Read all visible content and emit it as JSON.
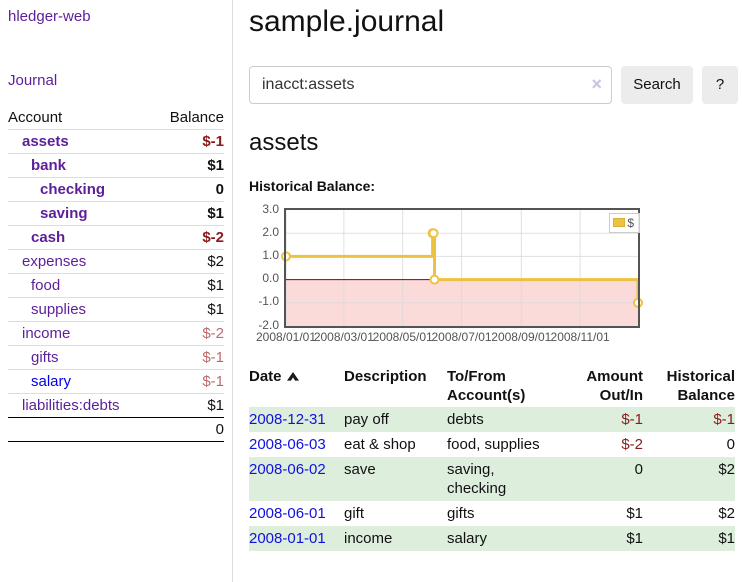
{
  "sidebar": {
    "app_title": "hledger-web",
    "nav": {
      "journal_label": "Journal"
    },
    "accounts_table": {
      "headers": {
        "account": "Account",
        "balance": "Balance"
      },
      "rows": [
        {
          "name": "assets",
          "balance": "$-1",
          "depth": 1,
          "bold": true,
          "name_style": "purple",
          "balance_style": "neg-dark"
        },
        {
          "name": "bank",
          "balance": "$1",
          "depth": 2,
          "bold": true,
          "name_style": "purple",
          "balance_style": "pos"
        },
        {
          "name": "checking",
          "balance": "0",
          "depth": 3,
          "bold": true,
          "name_style": "purple",
          "balance_style": "pos"
        },
        {
          "name": "saving",
          "balance": "$1",
          "depth": 3,
          "bold": true,
          "name_style": "purple",
          "balance_style": "pos"
        },
        {
          "name": "cash",
          "balance": "$-2",
          "depth": 2,
          "bold": true,
          "name_style": "purple",
          "balance_style": "neg-dark"
        },
        {
          "name": "expenses",
          "balance": "$2",
          "depth": 1,
          "bold": false,
          "name_style": "purple",
          "balance_style": "pos"
        },
        {
          "name": "food",
          "balance": "$1",
          "depth": 2,
          "bold": false,
          "name_style": "purple",
          "balance_style": "pos"
        },
        {
          "name": "supplies",
          "balance": "$1",
          "depth": 2,
          "bold": false,
          "name_style": "purple",
          "balance_style": "pos"
        },
        {
          "name": "income",
          "balance": "$-2",
          "depth": 1,
          "bold": false,
          "name_style": "purple",
          "balance_style": "neg-light"
        },
        {
          "name": "gifts",
          "balance": "$-1",
          "depth": 2,
          "bold": false,
          "name_style": "purple",
          "balance_style": "neg-light"
        },
        {
          "name": "salary",
          "balance": "$-1",
          "depth": 2,
          "bold": false,
          "name_style": "blue",
          "balance_style": "neg-light"
        },
        {
          "name": "liabilities:debts",
          "balance": "$1",
          "depth": 1,
          "bold": false,
          "name_style": "purple",
          "balance_style": "pos"
        }
      ],
      "total": "0"
    }
  },
  "main": {
    "title": "sample.journal",
    "search": {
      "value": "inacct:assets",
      "clear_icon": "×",
      "button_label": "Search",
      "help_label": "?"
    },
    "account_heading": "assets",
    "chart_heading": "Historical Balance:"
  },
  "chart_data": {
    "type": "line",
    "title": "Historical Balance:",
    "steps": true,
    "series": [
      {
        "name": "$",
        "color": "#edc240",
        "points": [
          [
            "2008-01-01",
            1
          ],
          [
            "2008-06-01",
            2
          ],
          [
            "2008-06-02",
            2
          ],
          [
            "2008-06-03",
            0
          ],
          [
            "2008-12-31",
            -1
          ]
        ]
      }
    ],
    "xlim": [
      "2008-01-01",
      "2008-12-31"
    ],
    "ylim": [
      -2,
      3
    ],
    "y_ticks": [
      {
        "value": 3,
        "label": "3.0"
      },
      {
        "value": 2,
        "label": "2.0"
      },
      {
        "value": 1,
        "label": "1.0"
      },
      {
        "value": 0,
        "label": "0.0"
      },
      {
        "value": -1,
        "label": "-1.0"
      },
      {
        "value": -2,
        "label": "-2.0"
      }
    ],
    "x_ticks": [
      {
        "date": "2008-01-01",
        "label": "2008/01/01"
      },
      {
        "date": "2008-03-01",
        "label": "2008/03/01"
      },
      {
        "date": "2008-05-01",
        "label": "2008/05/01"
      },
      {
        "date": "2008-07-01",
        "label": "2008/07/01"
      },
      {
        "date": "2008-09-01",
        "label": "2008/09/01"
      },
      {
        "date": "2008-11-01",
        "label": "2008/11/01"
      }
    ],
    "grid": true,
    "legend_position": "top-right",
    "legend_label": "$",
    "negative_region_color": "#fbdada",
    "zero_line_color": "#8b0000",
    "line_color": "#edc240"
  },
  "register": {
    "headers": {
      "date": "Date",
      "description": "Description",
      "accounts": "To/From\nAccount(s)",
      "amount": "Amount\nOut/In",
      "balance": "Historical\nBalance",
      "sort_icon": "sort-ascending"
    },
    "rows": [
      {
        "date": "2008-12-31",
        "description": "pay off",
        "accounts": [
          "debts"
        ],
        "amount": "$-1",
        "amount_style": "neg-dark",
        "balance": "$-1",
        "balance_style": "neg-dark",
        "shaded": true
      },
      {
        "date": "2008-06-03",
        "description": "eat & shop",
        "accounts": [
          "food, supplies"
        ],
        "amount": "$-2",
        "amount_style": "neg-dark",
        "balance": "0",
        "balance_style": "pos",
        "shaded": false
      },
      {
        "date": "2008-06-02",
        "description": "save",
        "accounts": [
          "saving,",
          "checking"
        ],
        "amount": "0",
        "amount_style": "pos",
        "balance": "$2",
        "balance_style": "pos",
        "shaded": true
      },
      {
        "date": "2008-06-01",
        "description": "gift",
        "accounts": [
          "gifts"
        ],
        "amount": "$1",
        "amount_style": "pos",
        "balance": "$2",
        "balance_style": "pos",
        "shaded": false
      },
      {
        "date": "2008-01-01",
        "description": "income",
        "accounts": [
          "salary"
        ],
        "amount": "$1",
        "amount_style": "pos",
        "balance": "$1",
        "balance_style": "pos",
        "shaded": true
      }
    ]
  },
  "colors": {
    "accent_purple": "#5c1f99",
    "link_blue": "#0000ee",
    "negative_dark": "#8b1a1a",
    "negative_light": "#c06969",
    "row_shade_green": "#ddeedd",
    "chart_line_gold": "#edc240",
    "chart_negative_fill": "#fbdada",
    "chart_zero_line": "#8b0000"
  }
}
